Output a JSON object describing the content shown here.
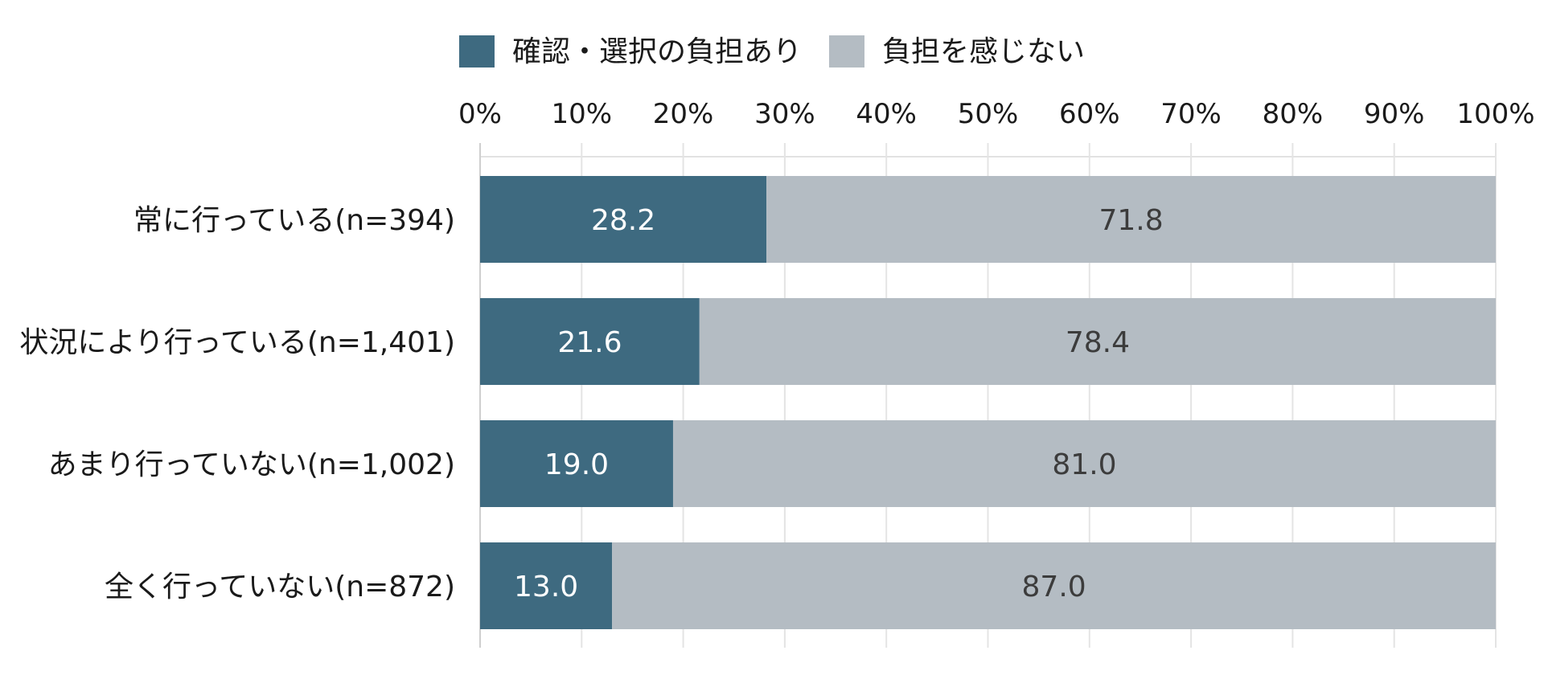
{
  "chart_data": {
    "type": "bar",
    "orientation": "horizontal",
    "stacked": true,
    "categories": [
      "常に行っている(n=394)",
      "状況により行っている(n=1,401)",
      "あまり行っていない(n=1,002)",
      "全く行っていない(n=872)"
    ],
    "series": [
      {
        "name": "確認・選択の負担あり",
        "values": [
          28.2,
          21.6,
          19.0,
          13.0
        ],
        "labels": [
          "28.2",
          "21.6",
          "19.0",
          "13.0"
        ],
        "color": "#3e6a80",
        "label_color": "#ffffff"
      },
      {
        "name": "負担を感じない",
        "values": [
          71.8,
          78.4,
          81.0,
          87.0
        ],
        "labels": [
          "71.8",
          "78.4",
          "81.0",
          "87.0"
        ],
        "color": "#b4bcc3",
        "label_color": "#3c3c3c"
      }
    ],
    "x_ticks": [
      "0%",
      "10%",
      "20%",
      "30%",
      "40%",
      "50%",
      "60%",
      "70%",
      "80%",
      "90%",
      "100%"
    ],
    "xlim": [
      0,
      100
    ],
    "x_axis_position": "top",
    "grid": true,
    "legend": "top-center",
    "title": "",
    "xlabel": "",
    "ylabel": ""
  }
}
